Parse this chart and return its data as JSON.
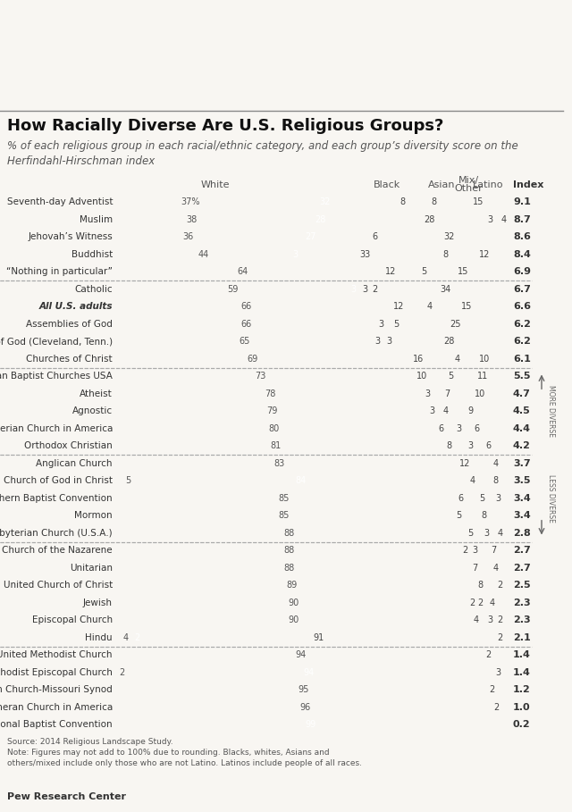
{
  "title": "How Racially Diverse Are U.S. Religious Groups?",
  "subtitle": "% of each religious group in each racial/ethnic category, and each group’s diversity score on the\nHerfindahl-Hirschman index",
  "groups": [
    {
      "name": "Seventh-day Adventist",
      "white": 37,
      "black": 32,
      "asian": 8,
      "other": 8,
      "latino": 15,
      "index": 9.1,
      "separator_before": false
    },
    {
      "name": "Muslim",
      "white": 38,
      "black": 28,
      "asian": 28,
      "other": 3,
      "latino": 4,
      "index": 8.7,
      "separator_before": false
    },
    {
      "name": "Jehovah’s Witness",
      "white": 36,
      "black": 27,
      "asian": 6,
      "other": 0,
      "latino": 32,
      "index": 8.6,
      "separator_before": false
    },
    {
      "name": "Buddhist",
      "white": 44,
      "black": 3,
      "asian": 33,
      "other": 8,
      "latino": 12,
      "index": 8.4,
      "separator_before": false
    },
    {
      "name": "“Nothing in particular”",
      "white": 64,
      "black": 0,
      "asian": 12,
      "other": 5,
      "latino": 15,
      "index": 6.9,
      "separator_before": false
    },
    {
      "name": "Catholic",
      "white": 59,
      "black": 3,
      "asian": 3,
      "other": 2,
      "latino": 34,
      "index": 6.7,
      "separator_before": true
    },
    {
      "name": "All U.S. adults",
      "white": 66,
      "black": 0,
      "asian": 12,
      "other": 4,
      "latino": 15,
      "index": 6.6,
      "separator_before": false,
      "bold": true
    },
    {
      "name": "Assemblies of God",
      "white": 66,
      "black": 0,
      "asian": 3,
      "other": 5,
      "latino": 25,
      "index": 6.2,
      "separator_before": false
    },
    {
      "name": "Church of God (Cleveland, Tenn.)",
      "white": 65,
      "black": 0,
      "asian": 3,
      "other": 3,
      "latino": 28,
      "index": 6.2,
      "separator_before": false
    },
    {
      "name": "Churches of Christ",
      "white": 69,
      "black": 0,
      "asian": 16,
      "other": 4,
      "latino": 10,
      "index": 6.1,
      "separator_before": false
    },
    {
      "name": "American Baptist Churches USA",
      "white": 73,
      "black": 0,
      "asian": 10,
      "other": 5,
      "latino": 11,
      "index": 5.5,
      "separator_before": true
    },
    {
      "name": "Atheist",
      "white": 78,
      "black": 0,
      "asian": 3,
      "other": 7,
      "latino": 10,
      "index": 4.7,
      "separator_before": false
    },
    {
      "name": "Agnostic",
      "white": 79,
      "black": 0,
      "asian": 3,
      "other": 4,
      "latino": 9,
      "index": 4.5,
      "separator_before": false
    },
    {
      "name": "Presbyterian Church in America",
      "white": 80,
      "black": 0,
      "asian": 6,
      "other": 3,
      "latino": 6,
      "index": 4.4,
      "separator_before": false
    },
    {
      "name": "Orthodox Christian",
      "white": 81,
      "black": 0,
      "asian": 8,
      "other": 3,
      "latino": 6,
      "index": 4.2,
      "separator_before": false
    },
    {
      "name": "Anglican Church",
      "white": 83,
      "black": 0,
      "asian": 12,
      "other": 0,
      "latino": 4,
      "index": 3.7,
      "separator_before": true
    },
    {
      "name": "Church of God in Christ",
      "white": 5,
      "black": 84,
      "asian": 0,
      "other": 4,
      "latino": 8,
      "index": 3.5,
      "separator_before": false
    },
    {
      "name": "Southern Baptist Convention",
      "white": 85,
      "black": 0,
      "asian": 6,
      "other": 5,
      "latino": 3,
      "index": 3.4,
      "separator_before": false
    },
    {
      "name": "Mormon",
      "white": 85,
      "black": 0,
      "asian": 0,
      "other": 5,
      "latino": 8,
      "index": 3.4,
      "separator_before": false
    },
    {
      "name": "Presbyterian Church (U.S.A.)",
      "white": 88,
      "black": 0,
      "asian": 5,
      "other": 3,
      "latino": 4,
      "index": 2.8,
      "separator_before": false
    },
    {
      "name": "Church of the Nazarene",
      "white": 88,
      "black": 0,
      "asian": 2,
      "other": 3,
      "latino": 7,
      "index": 2.7,
      "separator_before": true
    },
    {
      "name": "Unitarian",
      "white": 88,
      "black": 0,
      "asian": 7,
      "other": 0,
      "latino": 4,
      "index": 2.7,
      "separator_before": false
    },
    {
      "name": "United Church of Christ",
      "white": 89,
      "black": 0,
      "asian": 8,
      "other": 0,
      "latino": 2,
      "index": 2.5,
      "separator_before": false
    },
    {
      "name": "Jewish",
      "white": 90,
      "black": 0,
      "asian": 2,
      "other": 2,
      "latino": 4,
      "index": 2.3,
      "separator_before": false
    },
    {
      "name": "Episcopal Church",
      "white": 90,
      "black": 0,
      "asian": 4,
      "other": 3,
      "latino": 2,
      "index": 2.3,
      "separator_before": false
    },
    {
      "name": "Hindu",
      "white": 4,
      "black": 2,
      "asian": 91,
      "other": 0,
      "latino": 2,
      "index": 2.1,
      "separator_before": false
    },
    {
      "name": "United Methodist Church",
      "white": 94,
      "black": 0,
      "asian": 0,
      "other": 0,
      "latino": 2,
      "index": 1.4,
      "separator_before": true
    },
    {
      "name": "African Methodist Episcopal Church",
      "white": 2,
      "black": 94,
      "asian": 0,
      "other": 0,
      "latino": 3,
      "index": 1.4,
      "separator_before": false
    },
    {
      "name": "Lutheran Church-Missouri Synod",
      "white": 95,
      "black": 0,
      "asian": 0,
      "other": 0,
      "latino": 2,
      "index": 1.2,
      "separator_before": false
    },
    {
      "name": "Evang. Lutheran Church in America",
      "white": 96,
      "black": 0,
      "asian": 0,
      "other": 0,
      "latino": 2,
      "index": 1.0,
      "separator_before": false
    },
    {
      "name": "National Baptist Convention",
      "white": 0,
      "black": 99,
      "asian": 0,
      "other": 0,
      "latino": 0,
      "index": 0.2,
      "separator_before": false
    }
  ],
  "bar_colors": [
    "#d5cfc8",
    "#6ab3d3",
    "#a2d1e8",
    "#c6e2ef",
    "#a2d1e8"
  ],
  "bg_color": "#f8f6f2",
  "row_bg_even": "#f8f6f2",
  "row_bg_odd": "#f0ede8",
  "text_color": "#333333",
  "sep_color": "#aaaaaa",
  "title_fontsize": 13,
  "subtitle_fontsize": 8.5,
  "label_fontsize": 7.5,
  "num_fontsize": 7.0,
  "index_fontsize": 8.0,
  "header_fontsize": 8.0
}
